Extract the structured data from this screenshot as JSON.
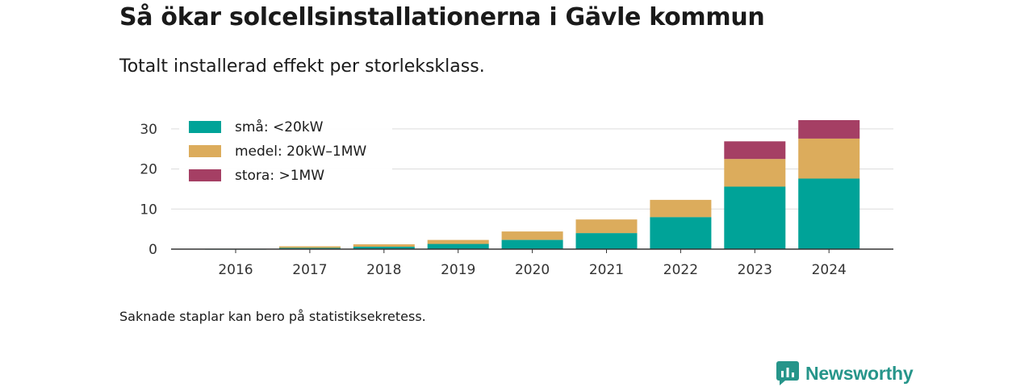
{
  "title": "Så ökar solcellsinstallationerna i Gävle kommun",
  "subtitle": "Totalt installerad effekt per storleksklass.",
  "footnote": "Saknade staplar kan bero på statistiksekretess.",
  "brand": {
    "name": "Newsworthy",
    "icon": "newsworthy-logo-icon",
    "color": "#26958a"
  },
  "chart_data": {
    "type": "bar",
    "stacked": true,
    "categories": [
      "2016",
      "2017",
      "2018",
      "2019",
      "2020",
      "2021",
      "2022",
      "2023",
      "2024"
    ],
    "series": [
      {
        "name": "små: <20kW",
        "color": "#00a398",
        "values": [
          0.05,
          0.3,
          0.6,
          1.3,
          2.3,
          4.0,
          8.0,
          15.6,
          17.6
        ]
      },
      {
        "name": "medel: 20kW–1MW",
        "color": "#dcac5c",
        "values": [
          0.0,
          0.4,
          0.6,
          1.0,
          2.1,
          3.4,
          4.3,
          6.9,
          10.0
        ]
      },
      {
        "name": "stora: >1MW",
        "color": "#a53f64",
        "values": [
          0.0,
          0.0,
          0.0,
          0.0,
          0.0,
          0.0,
          0.0,
          4.4,
          4.6
        ]
      }
    ],
    "ylim": [
      0,
      33
    ],
    "yticks": [
      0,
      10,
      20,
      30
    ],
    "xlabel": "",
    "ylabel": "",
    "grid": true,
    "legend_position": "top-left"
  }
}
